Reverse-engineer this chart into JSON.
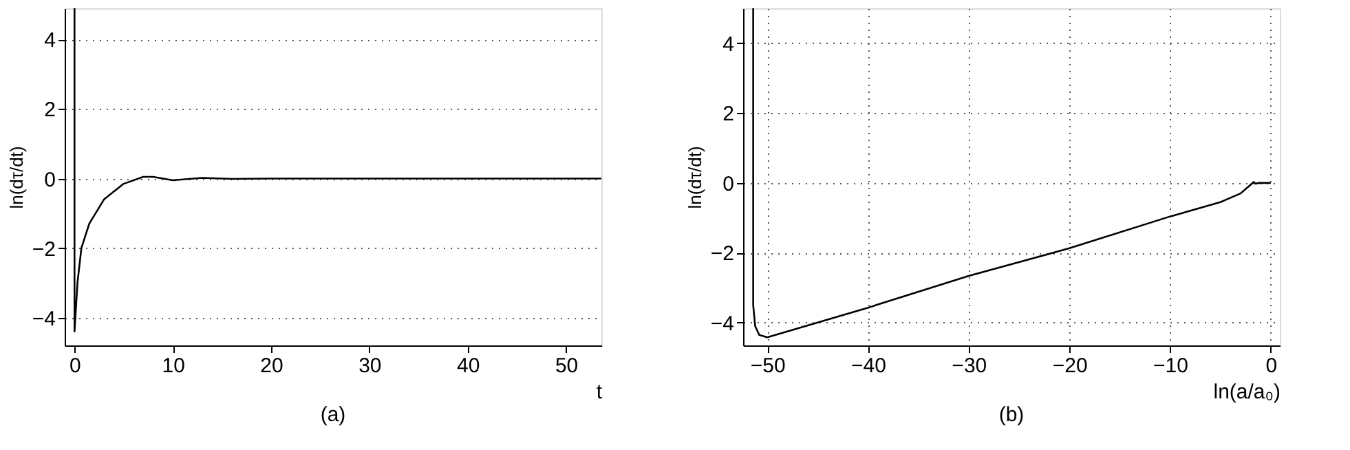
{
  "chart_data": [
    {
      "type": "line",
      "xlabel": "t",
      "ylabel": "ln(dτ/dt)",
      "annotations": [
        "(a)"
      ],
      "xlim": [
        -1,
        53.6
      ],
      "ylim": [
        -4.8,
        4.9
      ],
      "xticks": [
        0,
        10,
        20,
        30,
        40,
        50
      ],
      "yticks": [
        -4,
        -2,
        0,
        2,
        4
      ],
      "grid": "y",
      "line_style": "solid",
      "marker": "none",
      "series": [
        {
          "color": "#000000",
          "x": [
            0,
            0,
            0.3,
            0.7,
            1.5,
            3,
            5,
            7,
            8,
            10,
            13,
            16,
            20,
            53.6
          ],
          "values": [
            4.9,
            -4.4,
            -3,
            -2,
            -1.3,
            -0.6,
            -0.15,
            0.05,
            0.05,
            -0.05,
            0.02,
            -0.01,
            0,
            0
          ]
        }
      ]
    },
    {
      "type": "line",
      "xlabel": "ln(a/a₀)",
      "ylabel": "ln(dτ/dt)",
      "annotations": [
        "(b)"
      ],
      "xlim": [
        -52.4,
        0.9
      ],
      "ylim": [
        -4.65,
        5
      ],
      "xticks": [
        -50,
        -40,
        -30,
        -20,
        -10,
        0
      ],
      "yticks": [
        -4,
        -2,
        0,
        2,
        4
      ],
      "grid": true,
      "line_style": "solid",
      "marker": "none",
      "series": [
        {
          "color": "#000000",
          "x": [
            -51.4,
            -51.4,
            -51.2,
            -50.8,
            -50,
            -40,
            -30,
            -20,
            -10,
            -5,
            -3,
            -2,
            -1.7,
            -1.5,
            -1.2,
            0
          ],
          "values": [
            5,
            -3.5,
            -4.1,
            -4.35,
            -4.42,
            -3.57,
            -2.66,
            -1.87,
            -0.96,
            -0.55,
            -0.3,
            -0.05,
            0.03,
            -0.02,
            0,
            0
          ]
        }
      ]
    }
  ]
}
